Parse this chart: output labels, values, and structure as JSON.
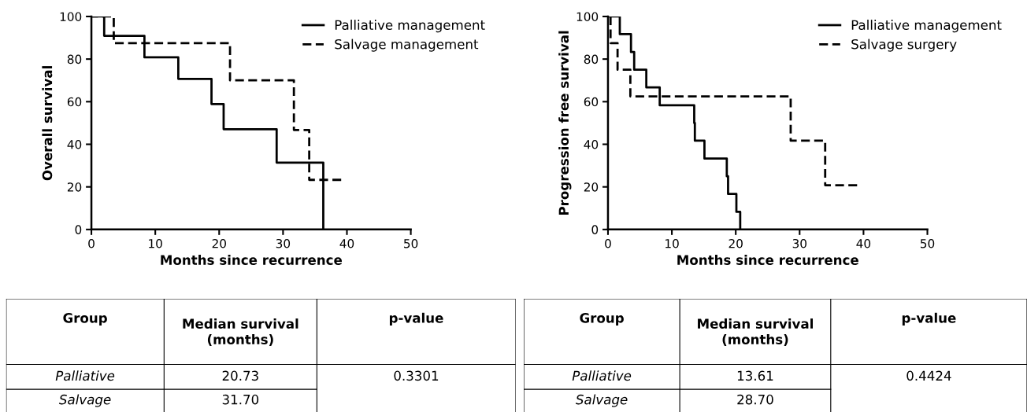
{
  "chart_data": [
    {
      "type": "step",
      "xlabel": "Months since recurrence",
      "ylabel": "Overall survival",
      "xlim": [
        0,
        50
      ],
      "ylim": [
        0,
        100
      ],
      "xticks": [
        0,
        10,
        20,
        30,
        40,
        50
      ],
      "yticks": [
        0,
        20,
        40,
        60,
        80,
        100
      ],
      "grid": false,
      "legend": "top right",
      "series": [
        {
          "name": "Palliative management",
          "color": "#000000",
          "line_style": "solid",
          "x": [
            0,
            2.0,
            8.3,
            13.6,
            18.8,
            20.7,
            29.0,
            36.3
          ],
          "values": [
            100,
            90.9,
            80.8,
            70.7,
            58.9,
            47.1,
            31.4,
            0
          ]
        },
        {
          "name": "Salvage management",
          "color": "#000000",
          "line_style": "dashed",
          "x": [
            0,
            3.5,
            21.7,
            31.7,
            34.1,
            39.1
          ],
          "values": [
            100,
            87.5,
            70,
            46.7,
            23.3,
            23.3
          ]
        }
      ]
    },
    {
      "type": "step",
      "xlabel": "Months since recurrence",
      "ylabel": "Progression free survival",
      "xlim": [
        0,
        50
      ],
      "ylim": [
        0,
        100
      ],
      "xticks": [
        0,
        10,
        20,
        30,
        40,
        50
      ],
      "yticks": [
        0,
        20,
        40,
        60,
        80,
        100
      ],
      "grid": false,
      "legend": "top right",
      "series": [
        {
          "name": "Palliative management",
          "color": "#000000",
          "line_style": "solid",
          "x": [
            0,
            1.85,
            3.6,
            4.1,
            6.0,
            8.1,
            13.5,
            13.6,
            15.1,
            18.6,
            18.8,
            20.1,
            20.7
          ],
          "values": [
            100,
            91.7,
            83.3,
            75,
            66.7,
            58.3,
            50,
            41.7,
            33.3,
            25,
            16.7,
            8.3,
            0
          ]
        },
        {
          "name": "Salvage surgery",
          "color": "#000000",
          "line_style": "dashed",
          "x": [
            0,
            0.4,
            1.5,
            3.5,
            28.6,
            34.0,
            39.0
          ],
          "values": [
            100,
            87.5,
            75,
            62.5,
            41.7,
            20.8,
            20.8
          ]
        }
      ]
    },
    {
      "type": "other",
      "annotations": [
        "Group",
        "Median survival\n(months)",
        "p-value",
        "Palliative",
        "20.73",
        "0.3301",
        "Salvage",
        "31.70"
      ]
    },
    {
      "type": "other",
      "annotations": [
        "Group",
        "Median survival\n(months)",
        "p-value",
        "Palliative",
        "13.61",
        "0.4424",
        "Salvage",
        "28.70"
      ]
    }
  ]
}
